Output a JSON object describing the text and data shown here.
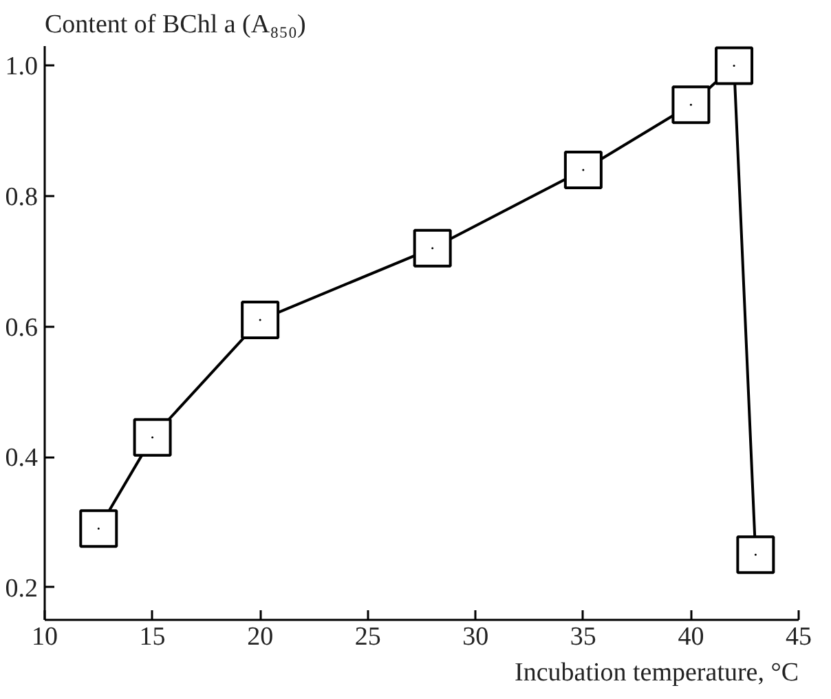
{
  "chart_data": {
    "type": "line",
    "ylabel": "Content of BChl a (A₈₅₀)",
    "xlabel": "Incubation temperature, °C",
    "x": [
      12.5,
      15,
      20,
      28,
      35,
      40,
      42,
      43
    ],
    "series": [
      {
        "color": "#000000",
        "values": [
          0.29,
          0.43,
          0.61,
          0.72,
          0.84,
          0.94,
          1.0,
          0.25
        ]
      }
    ],
    "xlim": [
      10,
      45
    ],
    "ylim": [
      0.15,
      1.03
    ],
    "xticks": [
      10,
      15,
      20,
      25,
      30,
      35,
      40,
      45
    ],
    "yticks": [
      0.2,
      0.4,
      0.6,
      0.8,
      {
        "value": 1,
        "label": "1.0"
      }
    ],
    "marker": "square",
    "line_style": "solid",
    "grid": false
  }
}
